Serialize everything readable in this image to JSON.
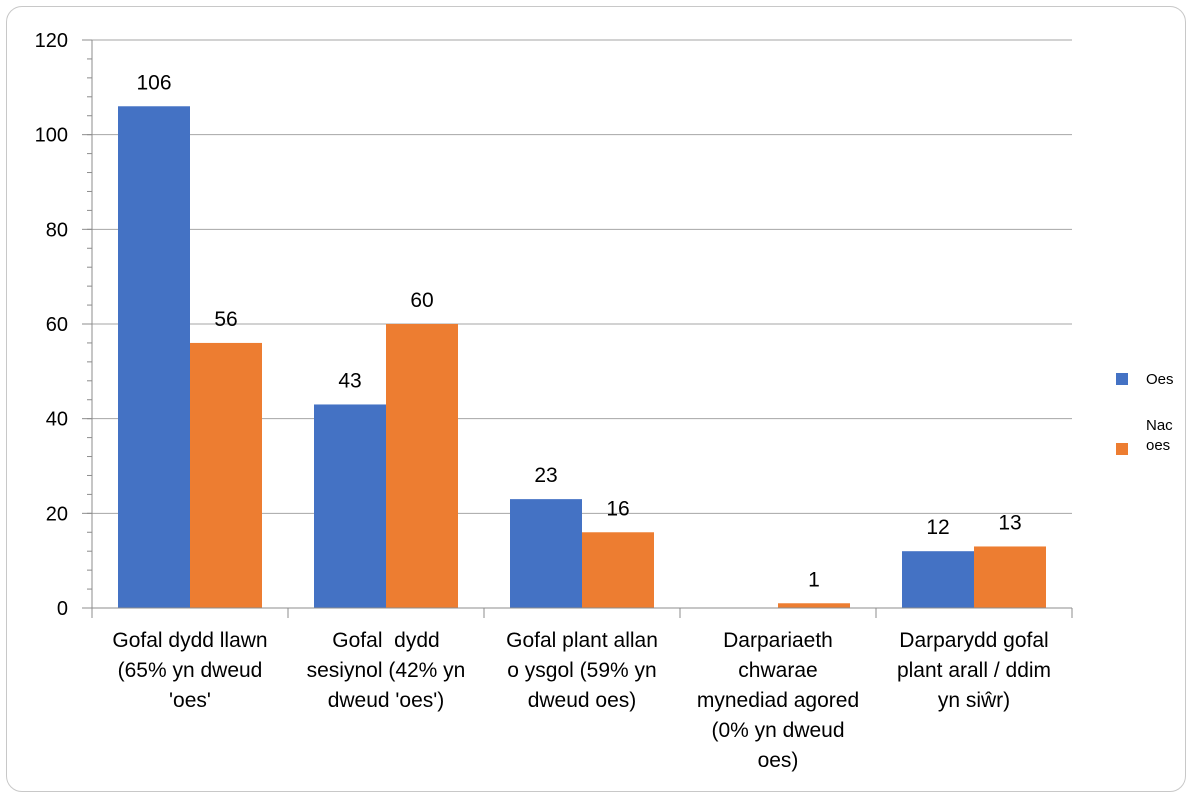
{
  "chart_data": {
    "type": "bar",
    "categories": [
      [
        "Gofal dydd llawn",
        "(65% yn dweud",
        "'oes'"
      ],
      [
        "Gofal  dydd",
        "sesiynol (42% yn",
        "dweud 'oes')"
      ],
      [
        "Gofal plant allan",
        "o ysgol (59% yn",
        "dweud oes)"
      ],
      [
        "Darpariaeth",
        "chwarae",
        "mynediad agored",
        "(0% yn dweud",
        "oes)"
      ],
      [
        "Darparydd gofal",
        "plant arall / ddim",
        "yn siŵr)"
      ]
    ],
    "series": [
      {
        "name": "Oes",
        "color": "#4472C4",
        "values": [
          106,
          43,
          23,
          null,
          12
        ],
        "labels": [
          "106",
          "43",
          "23",
          "",
          "12"
        ]
      },
      {
        "name": "Nac oes",
        "color": "#ED7D31",
        "values": [
          56,
          60,
          16,
          1,
          13
        ],
        "labels": [
          "56",
          "60",
          "16",
          "1",
          "13"
        ]
      }
    ],
    "y_ticks": [
      "0",
      "20",
      "40",
      "60",
      "80",
      "100",
      "120"
    ],
    "ylim": [
      0,
      120
    ],
    "grid": true,
    "legend": "right",
    "legend_lines": [
      [
        "Oes"
      ],
      [
        "Nac",
        "oes"
      ]
    ],
    "title": "",
    "xlabel": "",
    "ylabel": ""
  }
}
